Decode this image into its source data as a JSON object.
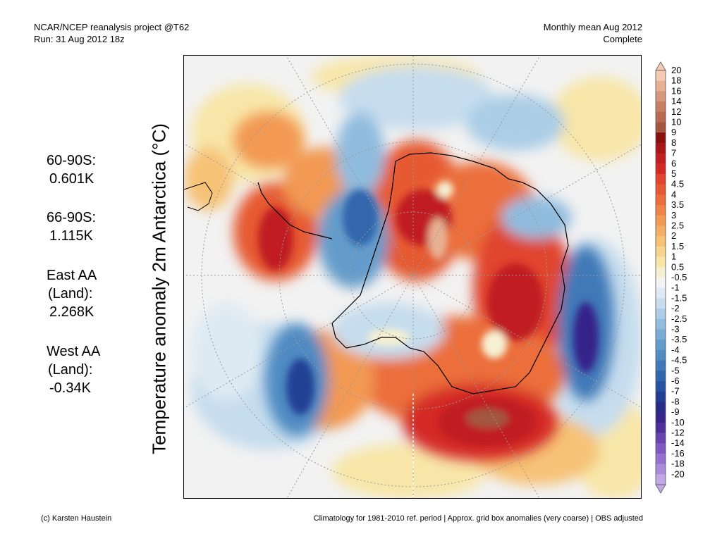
{
  "header": {
    "left_line1": "NCAR/NCEP reanalysis project @T62",
    "left_line2": "Run: 31 Aug 2012 18z",
    "right_line1": "Monthly mean Aug 2012",
    "right_line2": "Complete"
  },
  "y_label": "Temperature anomaly 2m Antarctica (°C)",
  "stats": {
    "s1_label": "60-90S:",
    "s1_value": "0.601K",
    "s2_label": "66-90S:",
    "s2_value": "1.115K",
    "s3_label1": "East AA",
    "s3_label2": "(Land):",
    "s3_value": "2.268K",
    "s4_label1": "West AA",
    "s4_label2": "(Land):",
    "s4_value": "-0.34K"
  },
  "colorbar": {
    "labels": [
      "20",
      "18",
      "16",
      "14",
      "12",
      "10",
      "9",
      "8",
      "7",
      "6",
      "5",
      "4.5",
      "4",
      "3.5",
      "3",
      "2.5",
      "2",
      "1.5",
      "1",
      "0.5",
      "-0.5",
      "-1",
      "-1.5",
      "-2",
      "-2.5",
      "-3",
      "-3.5",
      "-4",
      "-4.5",
      "-5",
      "-6",
      "-7",
      "-8",
      "-9",
      "-10",
      "-12",
      "-14",
      "-16",
      "-18",
      "-20"
    ],
    "colors": [
      "#f4cbb0",
      "#e8b092",
      "#d9977a",
      "#c98062",
      "#b86a50",
      "#a35640",
      "#8a0f0f",
      "#a8161a",
      "#c01f22",
      "#d42a26",
      "#e0452e",
      "#e65a33",
      "#eb6e3b",
      "#ef8446",
      "#f29953",
      "#f4ae63",
      "#f6c276",
      "#f8d58c",
      "#f8e6a8",
      "#f6f0d2",
      "#f3f3f3",
      "#deeaf3",
      "#c6ddee",
      "#abcde6",
      "#90bcde",
      "#78acd5",
      "#639ccb",
      "#508bc2",
      "#3f79b8",
      "#3066ad",
      "#2553a1",
      "#213f94",
      "#262c87",
      "#36248a",
      "#4e2f9c",
      "#6844b0",
      "#7f59c2",
      "#9571cf",
      "#aa8bdb",
      "#c2a8e6"
    ]
  },
  "footer": {
    "left": "(c) Karsten Haustein",
    "right": "Climatology for 1981-2010 ref. period | Approx. grid box anomalies (very coarse) | OBS adjusted"
  }
}
